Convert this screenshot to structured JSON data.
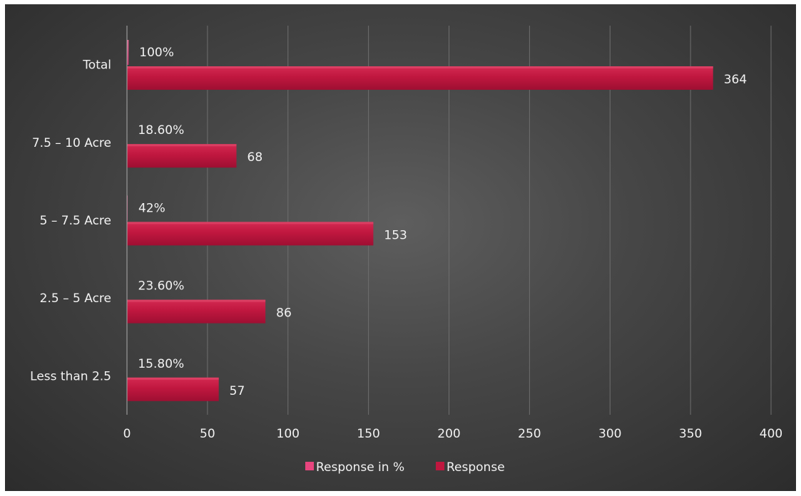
{
  "chart_data": {
    "type": "bar",
    "orientation": "horizontal",
    "categories": [
      "Total",
      "7.5 – 10 Acre",
      "5 – 7.5 Acre",
      "2.5 – 5 Acre",
      "Less than 2.5"
    ],
    "series": [
      {
        "name": "Response in %",
        "values": [
          1.0,
          0.186,
          0.42,
          0.236,
          0.158
        ],
        "labels": [
          "100%",
          "18.60%",
          "42%",
          "23.60%",
          "15.80%"
        ],
        "color": "#e8457e"
      },
      {
        "name": "Response",
        "values": [
          364,
          68,
          153,
          86,
          57
        ],
        "labels": [
          "364",
          "68",
          "153",
          "86",
          "57"
        ],
        "color": "#c0173f"
      }
    ],
    "x_ticks": [
      "0",
      "50",
      "100",
      "150",
      "200",
      "250",
      "300",
      "350",
      "400"
    ],
    "xlim": [
      0,
      400
    ],
    "grid": true,
    "legend_position": "bottom",
    "title": "",
    "xlabel": "",
    "ylabel": ""
  },
  "colors": {
    "background_center": "#5e5e5e",
    "background_edge": "#2c2c2c",
    "gridline": "#6e6e6e",
    "text": "#f2f2f2"
  }
}
